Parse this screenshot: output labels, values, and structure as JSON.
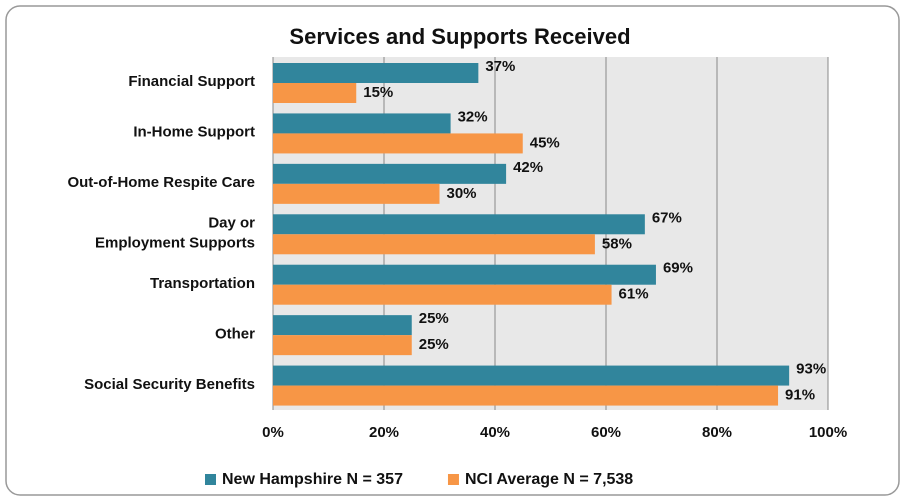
{
  "chart_data": {
    "type": "hbar",
    "title": "Services and Supports Received",
    "categories": [
      "Financial Support",
      "In-Home Support",
      "Out-of-Home Respite Care",
      "Day or Employment Supports",
      "Transportation",
      "Other",
      "Social Security Benefits"
    ],
    "series": [
      {
        "name": "New Hampshire N = 357",
        "color": "#31859c",
        "values": [
          37,
          32,
          42,
          67,
          69,
          25,
          93
        ],
        "value_labels": [
          "37%",
          "32%",
          "42%",
          "67%",
          "69%",
          "25%",
          "93%"
        ]
      },
      {
        "name": "NCI Average N = 7,538",
        "color": "#f79646",
        "values": [
          15,
          45,
          30,
          58,
          61,
          25,
          91
        ],
        "value_labels": [
          "15%",
          "45%",
          "30%",
          "58%",
          "61%",
          "25%",
          "91%"
        ]
      }
    ],
    "xlim": [
      0,
      100
    ],
    "xticks": [
      {
        "value": 0,
        "label": "0%"
      },
      {
        "value": 20,
        "label": "20%"
      },
      {
        "value": 40,
        "label": "40%"
      },
      {
        "value": 60,
        "label": "60%"
      },
      {
        "value": 80,
        "label": "80%"
      },
      {
        "value": 100,
        "label": "100%"
      }
    ],
    "grid": true,
    "legend": "bottom"
  }
}
